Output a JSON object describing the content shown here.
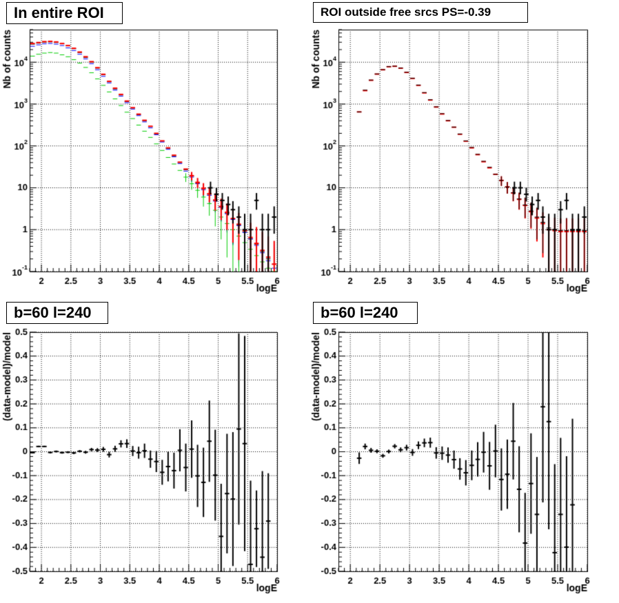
{
  "chart_data": [
    {
      "panel": "top-left",
      "type": "line",
      "title": "In entire ROI",
      "xlabel": "logE",
      "ylabel": "Nb of counts",
      "xlim": [
        1.8,
        6.0
      ],
      "ylim": [
        0.1,
        60000
      ],
      "yscale": "log",
      "grid": true,
      "xticks": [
        "2",
        "2.5",
        "3",
        "3.5",
        "4",
        "4.5",
        "5",
        "5.5",
        "6"
      ],
      "yticks": [
        "10^-1",
        "1",
        "10",
        "10^2",
        "10^3",
        "10^4"
      ],
      "x": [
        1.85,
        1.95,
        2.05,
        2.15,
        2.25,
        2.35,
        2.45,
        2.55,
        2.65,
        2.75,
        2.85,
        2.95,
        3.05,
        3.15,
        3.25,
        3.35,
        3.45,
        3.55,
        3.65,
        3.75,
        3.85,
        3.95,
        4.05,
        4.15,
        4.25,
        4.35,
        4.45,
        4.55,
        4.65,
        4.75,
        4.85,
        4.95,
        5.05,
        5.15,
        5.25,
        5.35,
        5.45,
        5.55,
        5.65,
        5.75,
        5.85,
        5.95
      ],
      "series": [
        {
          "color": "#000000",
          "values": [
            27000,
            28500,
            30000,
            30500,
            29500,
            27500,
            24500,
            21000,
            17000,
            13000,
            10000,
            7200,
            5000,
            3400,
            2300,
            1650,
            1150,
            800,
            560,
            400,
            290,
            195,
            130,
            88,
            58,
            40,
            27,
            19,
            13,
            9.5,
            7,
            5,
            3.5,
            2.5,
            1.8,
            1.3,
            0.9,
            0.6,
            0.45,
            0.3,
            0.2,
            0.15
          ]
        },
        {
          "color": "#0000ff",
          "values": [
            24000,
            26000,
            27500,
            28000,
            27000,
            25000,
            22000,
            19000,
            15500,
            12000,
            9200,
            6600,
            4600,
            3200,
            2150,
            1550,
            1080,
            760,
            530,
            375,
            270,
            185,
            124,
            83,
            55,
            38,
            25,
            18,
            12.5,
            9,
            6.6,
            4.8,
            3.4,
            2.4,
            1.75,
            1.25,
            0.85,
            0.6,
            0.42,
            0.28,
            0.18,
            0.12
          ]
        },
        {
          "color": "#00cc00",
          "values": [
            14000,
            15500,
            16500,
            17000,
            16500,
            15000,
            13500,
            11500,
            9500,
            7500,
            5600,
            4000,
            2800,
            1950,
            1330,
            920,
            640,
            450,
            315,
            225,
            160,
            112,
            78,
            53,
            37,
            26,
            18,
            12.5,
            8.7,
            6,
            4.2,
            2.9,
            2,
            1.4,
            1,
            0.7,
            0.49,
            0.34,
            0.24,
            0.17,
            0.12,
            0.08
          ]
        },
        {
          "color": "#ff0000",
          "values": [
            28000,
            29500,
            31000,
            31500,
            30500,
            28000,
            25000,
            21500,
            17500,
            13500,
            10300,
            7400,
            5150,
            3500,
            2400,
            1700,
            1180,
            820,
            575,
            410,
            295,
            200,
            132,
            90,
            60,
            41,
            28,
            19.5,
            13.5,
            9.8,
            7.2,
            5.1,
            3.6,
            2.6,
            1.85,
            1.35,
            0.95,
            0.65,
            0.47,
            0.32,
            0.22,
            0.15
          ]
        }
      ],
      "data_points": [
        {
          "x": 4.87,
          "y": 10,
          "y_low": 7,
          "y_high": 14
        },
        {
          "x": 4.97,
          "y": 7,
          "y_low": 4.7,
          "y_high": 10
        },
        {
          "x": 5.07,
          "y": 5,
          "y_low": 3,
          "y_high": 7.5
        },
        {
          "x": 5.17,
          "y": 4,
          "y_low": 2.2,
          "y_high": 6.2
        },
        {
          "x": 5.25,
          "y": 3,
          "y_low": 1.4,
          "y_high": 4.8
        },
        {
          "x": 5.35,
          "y": 2,
          "y_low": 0.8,
          "y_high": 3.6
        },
        {
          "x": 5.45,
          "y": 1,
          "y_low": 0.1,
          "y_high": 2.4
        },
        {
          "x": 5.55,
          "y": 1,
          "y_low": 0.1,
          "y_high": 2.4
        },
        {
          "x": 5.65,
          "y": 5,
          "y_low": 3,
          "y_high": 7.5
        },
        {
          "x": 5.75,
          "y": 1,
          "y_low": 0.1,
          "y_high": 2.4
        },
        {
          "x": 5.85,
          "y": 1,
          "y_low": 0.1,
          "y_high": 2.4
        },
        {
          "x": 5.95,
          "y": 2,
          "y_low": 0.8,
          "y_high": 3.6
        }
      ]
    },
    {
      "panel": "top-right",
      "type": "line",
      "title": "ROI outside free srcs PS=-0.39",
      "xlabel": "logE",
      "ylabel": "Nb of counts",
      "xlim": [
        1.8,
        6.0
      ],
      "ylim": [
        0.1,
        60000
      ],
      "yscale": "log",
      "grid": true,
      "xticks": [
        "2",
        "2.5",
        "3",
        "3.5",
        "4",
        "4.5",
        "5",
        "5.5",
        "6"
      ],
      "yticks": [
        "10^-1",
        "1",
        "10",
        "10^2",
        "10^3",
        "10^4"
      ],
      "x": [
        2.15,
        2.25,
        2.35,
        2.45,
        2.55,
        2.65,
        2.75,
        2.85,
        2.95,
        3.05,
        3.15,
        3.25,
        3.35,
        3.45,
        3.55,
        3.65,
        3.75,
        3.85,
        3.95,
        4.05,
        4.15,
        4.25,
        4.35,
        4.45,
        4.55,
        4.65,
        4.75,
        4.85,
        4.95,
        5.05,
        5.15,
        5.25,
        5.35,
        5.45,
        5.55,
        5.65,
        5.75,
        5.85,
        5.95
      ],
      "series": [
        {
          "color": "#ff0000",
          "values": [
            650,
            2100,
            3700,
            5200,
            6600,
            7800,
            8000,
            7200,
            5700,
            4100,
            2800,
            1850,
            1250,
            850,
            580,
            400,
            280,
            190,
            130,
            90,
            62,
            42,
            30,
            21,
            15,
            10.5,
            7.5,
            5.3,
            3.8,
            2.7,
            1.9,
            1.4,
            1,
            0.95,
            0.9,
            0.9,
            0.9,
            0.9,
            0.9
          ]
        },
        {
          "color": "#000000",
          "values": [
            650,
            2150,
            3750,
            5250,
            6650,
            7850,
            8050,
            7250,
            5750,
            4150,
            2850,
            1880,
            1270,
            860,
            590,
            405,
            282,
            193,
            132,
            92,
            63,
            43,
            31,
            21,
            15,
            10.5,
            7.6,
            5.4,
            3.9,
            2.8,
            2,
            1.5,
            1.1,
            1,
            0.95,
            0.95,
            0.95,
            0.95,
            0.95
          ]
        }
      ],
      "data_points": [
        {
          "x": 4.77,
          "y": 10,
          "y_low": 7,
          "y_high": 14
        },
        {
          "x": 4.87,
          "y": 10,
          "y_low": 7,
          "y_high": 14
        },
        {
          "x": 4.97,
          "y": 7,
          "y_low": 4.7,
          "y_high": 10
        },
        {
          "x": 5.07,
          "y": 4,
          "y_low": 2.2,
          "y_high": 6.2
        },
        {
          "x": 5.17,
          "y": 5,
          "y_low": 3,
          "y_high": 7.5
        },
        {
          "x": 5.25,
          "y": 2,
          "y_low": 0.8,
          "y_high": 3.6
        },
        {
          "x": 5.35,
          "y": 1,
          "y_low": 0.1,
          "y_high": 2.4
        },
        {
          "x": 5.45,
          "y": 1,
          "y_low": 0.1,
          "y_high": 2.4
        },
        {
          "x": 5.55,
          "y": 3,
          "y_low": 1.4,
          "y_high": 4.8
        },
        {
          "x": 5.65,
          "y": 5,
          "y_low": 3,
          "y_high": 7.5
        },
        {
          "x": 5.75,
          "y": 1,
          "y_low": 0.1,
          "y_high": 2.4
        },
        {
          "x": 5.85,
          "y": 1,
          "y_low": 0.1,
          "y_high": 2.4
        },
        {
          "x": 5.95,
          "y": 2,
          "y_low": 0.8,
          "y_high": 3.6
        }
      ]
    },
    {
      "panel": "bottom-left",
      "type": "scatter",
      "title": "b=60 l=240",
      "xlabel": "logE",
      "ylabel": "(data-model)/model",
      "xlim": [
        1.8,
        6.0
      ],
      "ylim": [
        -0.5,
        0.5
      ],
      "yscale": "linear",
      "grid": true,
      "xticks": [
        "2",
        "2.5",
        "3",
        "3.5",
        "4",
        "4.5",
        "5",
        "5.5",
        "6"
      ],
      "yticks": [
        "-0.5",
        "-0.4",
        "-0.3",
        "-0.2",
        "-0.1",
        "0",
        "0.1",
        "0.2",
        "0.3",
        "0.4",
        "0.5"
      ],
      "points": [
        {
          "x": 1.85,
          "y": -0.004,
          "err": 0.003
        },
        {
          "x": 1.95,
          "y": 0.022,
          "err": 0.003
        },
        {
          "x": 2.05,
          "y": 0.022,
          "err": 0.003
        },
        {
          "x": 2.15,
          "y": -0.003,
          "err": 0.004
        },
        {
          "x": 2.25,
          "y": 0.001,
          "err": 0.004
        },
        {
          "x": 2.35,
          "y": -0.004,
          "err": 0.004
        },
        {
          "x": 2.45,
          "y": -0.002,
          "err": 0.004
        },
        {
          "x": 2.55,
          "y": -0.005,
          "err": 0.005
        },
        {
          "x": 2.65,
          "y": 0.002,
          "err": 0.005
        },
        {
          "x": 2.75,
          "y": -0.002,
          "err": 0.006
        },
        {
          "x": 2.85,
          "y": 0.009,
          "err": 0.007
        },
        {
          "x": 2.95,
          "y": 0.007,
          "err": 0.008
        },
        {
          "x": 3.05,
          "y": 0.01,
          "err": 0.01
        },
        {
          "x": 3.15,
          "y": -0.012,
          "err": 0.012
        },
        {
          "x": 3.25,
          "y": 0.012,
          "err": 0.013
        },
        {
          "x": 3.35,
          "y": 0.033,
          "err": 0.015
        },
        {
          "x": 3.45,
          "y": 0.034,
          "err": 0.018
        },
        {
          "x": 3.55,
          "y": 0.003,
          "err": 0.021
        },
        {
          "x": 3.65,
          "y": -0.004,
          "err": 0.025
        },
        {
          "x": 3.75,
          "y": 0.004,
          "err": 0.03
        },
        {
          "x": 3.85,
          "y": -0.031,
          "err": 0.036
        },
        {
          "x": 3.95,
          "y": -0.041,
          "err": 0.044
        },
        {
          "x": 4.05,
          "y": -0.086,
          "err": 0.052
        },
        {
          "x": 4.15,
          "y": -0.062,
          "err": 0.062
        },
        {
          "x": 4.25,
          "y": -0.079,
          "err": 0.075
        },
        {
          "x": 4.35,
          "y": 0.006,
          "err": 0.088
        },
        {
          "x": 4.45,
          "y": -0.066,
          "err": 0.1
        },
        {
          "x": 4.55,
          "y": 0.011,
          "err": 0.12
        },
        {
          "x": 4.65,
          "y": -0.101,
          "err": 0.13
        },
        {
          "x": 4.75,
          "y": -0.128,
          "err": 0.145
        },
        {
          "x": 4.85,
          "y": 0.044,
          "err": 0.17
        },
        {
          "x": 4.95,
          "y": -0.098,
          "err": 0.19
        },
        {
          "x": 5.05,
          "y": -0.354,
          "err": 0.22
        },
        {
          "x": 5.15,
          "y": -0.175,
          "err": 0.25
        },
        {
          "x": 5.25,
          "y": -0.198,
          "err": 0.28
        },
        {
          "x": 5.35,
          "y": 0.095,
          "err": 0.4
        },
        {
          "x": 5.45,
          "y": 0.034,
          "err": 0.45
        },
        {
          "x": 5.55,
          "y": -0.471,
          "err": 0.35
        },
        {
          "x": 5.65,
          "y": -0.322,
          "err": 0.16
        },
        {
          "x": 5.75,
          "y": -0.441,
          "err": 0.36
        },
        {
          "x": 5.85,
          "y": -0.29,
          "err": 0.2
        }
      ]
    },
    {
      "panel": "bottom-right",
      "type": "scatter",
      "title": "b=60 l=240",
      "xlabel": "logE",
      "ylabel": "(data-model)/model",
      "xlim": [
        1.8,
        6.0
      ],
      "ylim": [
        -0.5,
        0.5
      ],
      "yscale": "linear",
      "grid": true,
      "xticks": [
        "2",
        "2.5",
        "3",
        "3.5",
        "4",
        "4.5",
        "5",
        "5.5",
        "6"
      ],
      "yticks": [
        "-0.5",
        "-0.4",
        "-0.3",
        "-0.2",
        "-0.1",
        "0",
        "0.1",
        "0.2",
        "0.3",
        "0.4",
        "0.5"
      ],
      "points": [
        {
          "x": 2.15,
          "y": -0.027,
          "err": 0.024
        },
        {
          "x": 2.25,
          "y": 0.022,
          "err": 0.012
        },
        {
          "x": 2.35,
          "y": 0.006,
          "err": 0.01
        },
        {
          "x": 2.45,
          "y": 0.002,
          "err": 0.008
        },
        {
          "x": 2.55,
          "y": -0.017,
          "err": 0.008
        },
        {
          "x": 2.65,
          "y": 0.001,
          "err": 0.008
        },
        {
          "x": 2.75,
          "y": 0.023,
          "err": 0.009
        },
        {
          "x": 2.85,
          "y": 0.008,
          "err": 0.01
        },
        {
          "x": 2.95,
          "y": 0.017,
          "err": 0.012
        },
        {
          "x": 3.05,
          "y": -0.003,
          "err": 0.014
        },
        {
          "x": 3.15,
          "y": 0.027,
          "err": 0.016
        },
        {
          "x": 3.25,
          "y": 0.037,
          "err": 0.018
        },
        {
          "x": 3.35,
          "y": 0.038,
          "err": 0.021
        },
        {
          "x": 3.45,
          "y": -0.005,
          "err": 0.024
        },
        {
          "x": 3.55,
          "y": -0.006,
          "err": 0.028
        },
        {
          "x": 3.65,
          "y": -0.014,
          "err": 0.032
        },
        {
          "x": 3.75,
          "y": -0.033,
          "err": 0.038
        },
        {
          "x": 3.85,
          "y": -0.072,
          "err": 0.045
        },
        {
          "x": 3.95,
          "y": -0.088,
          "err": 0.053
        },
        {
          "x": 4.05,
          "y": -0.057,
          "err": 0.062
        },
        {
          "x": 4.15,
          "y": -0.032,
          "err": 0.072
        },
        {
          "x": 4.25,
          "y": -0.002,
          "err": 0.085
        },
        {
          "x": 4.35,
          "y": -0.059,
          "err": 0.1
        },
        {
          "x": 4.45,
          "y": 0.003,
          "err": 0.11
        },
        {
          "x": 4.55,
          "y": -0.116,
          "err": 0.13
        },
        {
          "x": 4.65,
          "y": -0.094,
          "err": 0.145
        },
        {
          "x": 4.75,
          "y": 0.044,
          "err": 0.16
        },
        {
          "x": 4.85,
          "y": -0.157,
          "err": 0.18
        },
        {
          "x": 4.95,
          "y": -0.382,
          "err": 0.21
        },
        {
          "x": 5.05,
          "y": -0.133,
          "err": 0.21
        },
        {
          "x": 5.15,
          "y": -0.262,
          "err": 0.24
        },
        {
          "x": 5.25,
          "y": 0.188,
          "err": 0.4
        },
        {
          "x": 5.35,
          "y": 0.126,
          "err": 0.45
        },
        {
          "x": 5.45,
          "y": -0.422,
          "err": 0.37
        },
        {
          "x": 5.55,
          "y": -0.262,
          "err": 0.32
        },
        {
          "x": 5.65,
          "y": -0.399,
          "err": 0.38
        },
        {
          "x": 5.75,
          "y": -0.222,
          "err": 0.36
        }
      ]
    }
  ]
}
